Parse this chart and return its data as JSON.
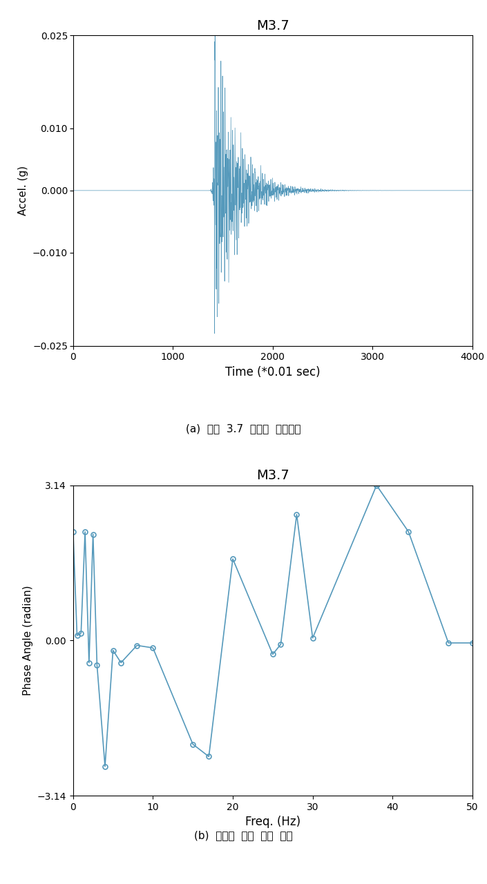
{
  "title": "M3.7",
  "subplot_a_xlabel": "Time (*0.01 sec)",
  "subplot_a_ylabel": "Accel. (g)",
  "subplot_a_caption": "(a)  규모  3.7  지진파  시간이력",
  "subplot_a_xlim": [
    0,
    4000
  ],
  "subplot_a_ylim": [
    -0.025,
    0.025
  ],
  "subplot_a_yticks": [
    -0.025,
    -0.01,
    0,
    0.01,
    0.025
  ],
  "subplot_a_xticks": [
    0,
    1000,
    2000,
    3000,
    4000
  ],
  "subplot_b_xlabel": "Freq. (Hz)",
  "subplot_b_ylabel": "Phase Angle (radian)",
  "subplot_b_caption": "(b)  주파수  영역  위상  크기",
  "subplot_b_xlim": [
    0,
    50
  ],
  "subplot_b_ylim": [
    -3.14,
    3.14
  ],
  "subplot_b_yticks": [
    -3.14,
    0,
    3.14
  ],
  "subplot_b_xticks": [
    0,
    10,
    20,
    30,
    40,
    50
  ],
  "phase_x": [
    0.0,
    0.5,
    1.0,
    1.5,
    2.0,
    2.5,
    3.0,
    4.0,
    5.0,
    6.0,
    8.0,
    10.0,
    15.0,
    17.0,
    20.0,
    25.0,
    26.0,
    28.0,
    30.0,
    38.0,
    42.0,
    47.0,
    50.0
  ],
  "phase_y": [
    2.2,
    0.1,
    0.15,
    2.2,
    -0.45,
    2.15,
    -0.5,
    -2.55,
    -0.2,
    -0.45,
    -0.1,
    -0.15,
    -2.1,
    -2.35,
    1.65,
    -0.28,
    -0.08,
    2.55,
    0.05,
    3.14,
    2.2,
    -0.05,
    -0.05
  ],
  "line_color": "#5599bb",
  "marker_color": "#5599bb",
  "bg_color": "#ffffff"
}
